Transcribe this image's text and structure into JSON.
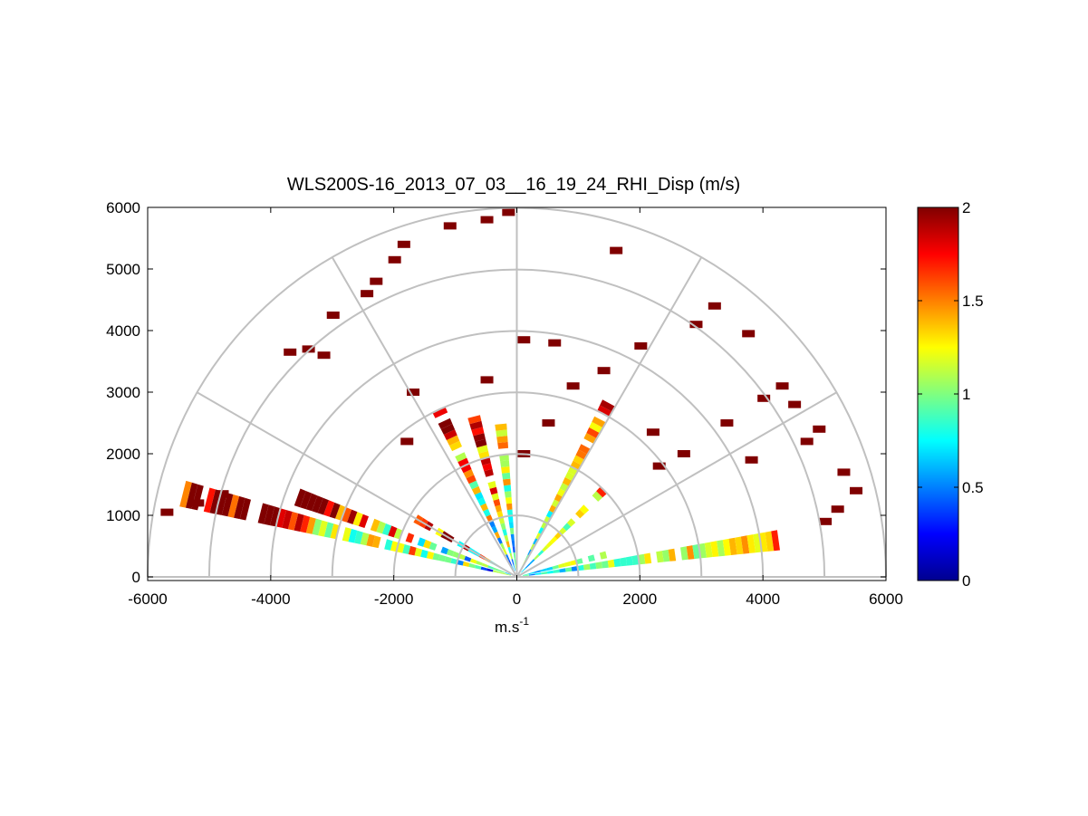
{
  "chart_data": {
    "type": "heatmap",
    "title": "WLS200S-16_2013_07_03__16_19_24_RHI_Disp (m/s)",
    "xlabel": "m.s",
    "xlabel_sup": "-1",
    "ylabel": "",
    "xlim": [
      -6000,
      6000
    ],
    "ylim": [
      0,
      6000
    ],
    "x_ticks": [
      -6000,
      -4000,
      -2000,
      0,
      2000,
      4000,
      6000
    ],
    "y_ticks": [
      0,
      1000,
      2000,
      3000,
      4000,
      5000,
      6000
    ],
    "x_tick_labels": [
      "-6000",
      "-4000",
      "-2000",
      "0",
      "2000",
      "4000",
      "6000"
    ],
    "y_tick_labels": [
      "0",
      "1000",
      "2000",
      "3000",
      "4000",
      "5000",
      "6000"
    ],
    "polar_grid": {
      "range_rings": [
        1000,
        2000,
        3000,
        4000,
        5000,
        6000
      ],
      "angles_deg": [
        0,
        30,
        60,
        90,
        120,
        150,
        180
      ]
    },
    "colorbar": {
      "min": 0,
      "max": 2,
      "ticks": [
        0,
        0.5,
        1,
        1.5,
        2
      ],
      "tick_labels": [
        "0",
        "0.5",
        "1",
        "1.5",
        "2"
      ],
      "colormap": "jet"
    },
    "rays": [
      {
        "elevation_deg": 8,
        "max_range_m": 4300,
        "noise": 0.5
      },
      {
        "elevation_deg": 14,
        "max_range_m": 1500,
        "noise": 0.4
      },
      {
        "elevation_deg": 45,
        "max_range_m": 2000,
        "noise": 0.5
      },
      {
        "elevation_deg": 62,
        "max_range_m": 3200,
        "noise": 0.6
      },
      {
        "elevation_deg": 96,
        "max_range_m": 2600,
        "noise": 0.6
      },
      {
        "elevation_deg": 105,
        "max_range_m": 2700,
        "noise": 0.8
      },
      {
        "elevation_deg": 115,
        "max_range_m": 3000,
        "noise": 0.8
      },
      {
        "elevation_deg": 150,
        "max_range_m": 2200,
        "noise": 1.0
      },
      {
        "elevation_deg": 160,
        "max_range_m": 3800,
        "noise": 0.8
      },
      {
        "elevation_deg": 166,
        "max_range_m": 5600,
        "noise": 0.9
      }
    ],
    "scatter_blocks": [
      {
        "x": -5700,
        "y": 1050
      },
      {
        "x": -5200,
        "y": 1200
      },
      {
        "x": -4800,
        "y": 1350
      },
      {
        "x": -3700,
        "y": 3650
      },
      {
        "x": -3400,
        "y": 3700
      },
      {
        "x": -3150,
        "y": 3600
      },
      {
        "x": -3000,
        "y": 4250
      },
      {
        "x": -2450,
        "y": 4600
      },
      {
        "x": -2300,
        "y": 4800
      },
      {
        "x": -2000,
        "y": 5150
      },
      {
        "x": -1850,
        "y": 5400
      },
      {
        "x": -1100,
        "y": 5700
      },
      {
        "x": -500,
        "y": 5800
      },
      {
        "x": -150,
        "y": 5920
      },
      {
        "x": 100,
        "y": 3850
      },
      {
        "x": 600,
        "y": 3800
      },
      {
        "x": 900,
        "y": 3100
      },
      {
        "x": 1400,
        "y": 3350
      },
      {
        "x": 2000,
        "y": 3750
      },
      {
        "x": 1600,
        "y": 5300
      },
      {
        "x": 2900,
        "y": 4100
      },
      {
        "x": 3200,
        "y": 4400
      },
      {
        "x": 3750,
        "y": 3950
      },
      {
        "x": 4000,
        "y": 2900
      },
      {
        "x": 4300,
        "y": 3100
      },
      {
        "x": 4500,
        "y": 2800
      },
      {
        "x": 4700,
        "y": 2200
      },
      {
        "x": 4900,
        "y": 2400
      },
      {
        "x": 5300,
        "y": 1700
      },
      {
        "x": 5500,
        "y": 1400
      },
      {
        "x": 5000,
        "y": 900
      },
      {
        "x": 5200,
        "y": 1100
      },
      {
        "x": 3400,
        "y": 2500
      },
      {
        "x": 2700,
        "y": 2000
      },
      {
        "x": 2300,
        "y": 1800
      },
      {
        "x": -500,
        "y": 3200
      },
      {
        "x": 100,
        "y": 2000
      },
      {
        "x": 500,
        "y": 2500
      },
      {
        "x": -1800,
        "y": 2200
      },
      {
        "x": -1700,
        "y": 3000
      },
      {
        "x": 2200,
        "y": 2350
      },
      {
        "x": 3800,
        "y": 1900
      }
    ]
  }
}
